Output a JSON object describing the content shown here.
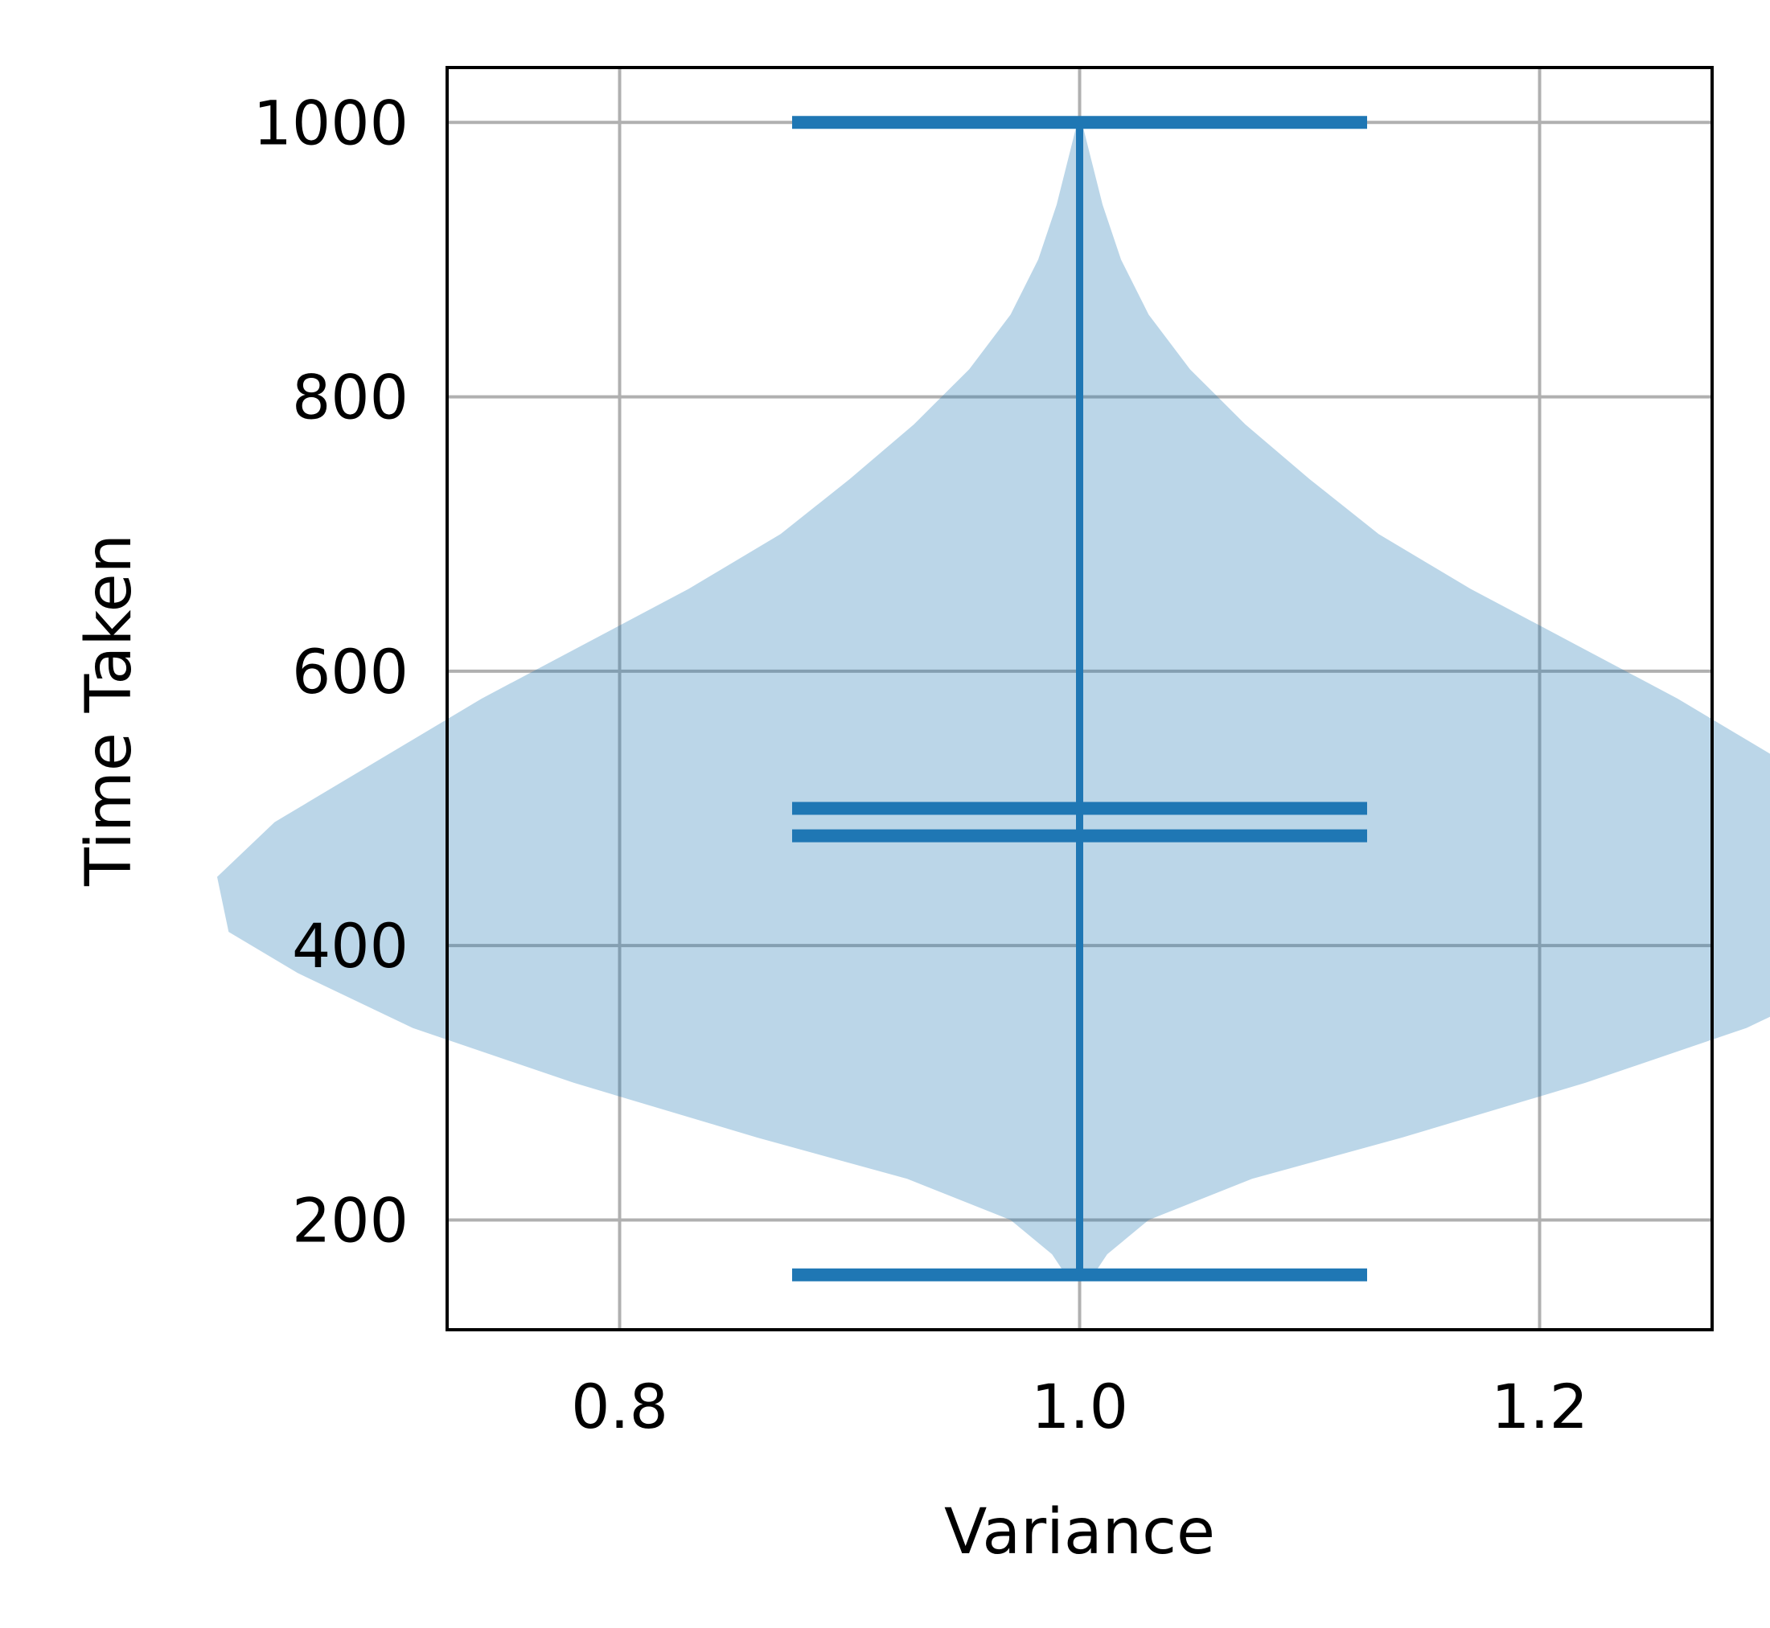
{
  "chart_data": {
    "type": "violin",
    "xlabel": "Variance",
    "ylabel": "Time Taken",
    "xlim": [
      0.725,
      1.275
    ],
    "ylim": [
      120,
      1040
    ],
    "xticks": [
      0.8,
      1.0,
      1.2
    ],
    "xtick_labels": [
      "0.8",
      "1.0",
      "1.2"
    ],
    "yticks": [
      200,
      400,
      600,
      800,
      1000
    ],
    "ytick_labels": [
      "200",
      "400",
      "600",
      "800",
      "1000"
    ],
    "grid": true,
    "series": [
      {
        "position": 1.0,
        "min": 160,
        "max": 1000,
        "median": 480,
        "mean": 500,
        "density_profile": [
          [
            160,
            0.006
          ],
          [
            175,
            0.012
          ],
          [
            200,
            0.03
          ],
          [
            230,
            0.075
          ],
          [
            260,
            0.14
          ],
          [
            300,
            0.22
          ],
          [
            340,
            0.29
          ],
          [
            380,
            0.34
          ],
          [
            410,
            0.37
          ],
          [
            450,
            0.375
          ],
          [
            490,
            0.35
          ],
          [
            540,
            0.3
          ],
          [
            580,
            0.26
          ],
          [
            620,
            0.215
          ],
          [
            660,
            0.17
          ],
          [
            700,
            0.13
          ],
          [
            740,
            0.1
          ],
          [
            780,
            0.072
          ],
          [
            820,
            0.048
          ],
          [
            860,
            0.03
          ],
          [
            900,
            0.018
          ],
          [
            940,
            0.01
          ],
          [
            980,
            0.004
          ],
          [
            1000,
            0.001
          ]
        ]
      }
    ],
    "colors": {
      "violin_fill": "#1f77b4",
      "violin_alpha": 0.3,
      "lines": "#1f77b4",
      "grid": "#b0b0b0",
      "frame": "#000000"
    }
  }
}
